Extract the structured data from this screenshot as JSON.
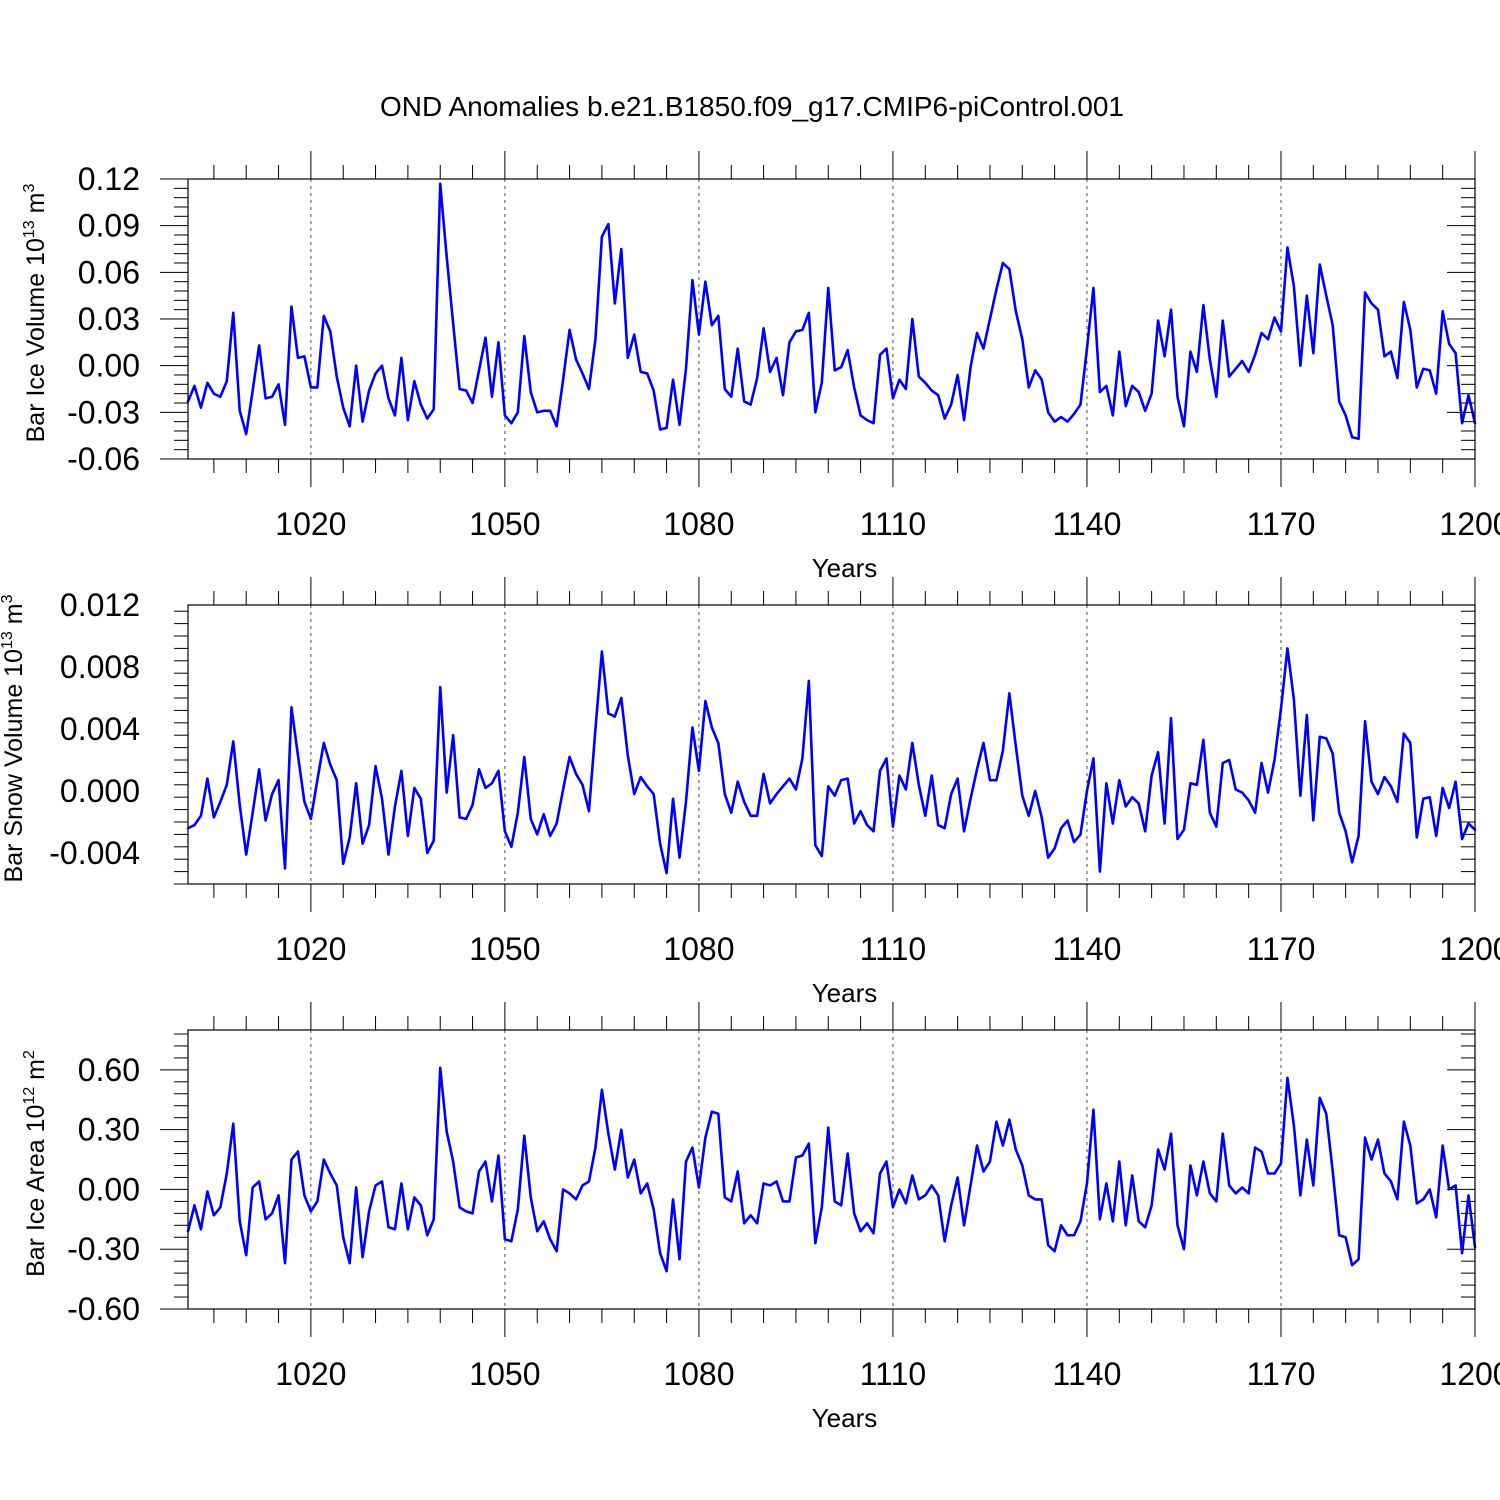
{
  "title": "OND Anomalies b.e21.B1850.f09_g17.CMIP6-piControl.001",
  "colors": {
    "line": "#0000ff",
    "axis": "#000000",
    "background": "#ffffff"
  },
  "chart_data": [
    {
      "type": "line",
      "ylabel": "Bar Ice Volume 10",
      "ylabel_exp": "13",
      "ylabel_unit": " m",
      "ylabel_unit_exp": "3",
      "xlabel": "Years",
      "xlim": [
        1001,
        1200
      ],
      "ylim": [
        -0.06,
        0.12
      ],
      "xticks": [
        1020,
        1050,
        1080,
        1110,
        1140,
        1170,
        1200
      ],
      "xtick_labels": [
        "1020",
        "1050",
        "1080",
        "1110",
        "1140",
        "1170",
        "1200"
      ],
      "yticks": [
        -0.06,
        -0.03,
        0.0,
        0.03,
        0.06,
        0.09,
        0.12
      ],
      "ytick_labels": [
        "-0.06",
        "-0.03",
        "0.00",
        "0.03",
        "0.06",
        "0.09",
        "0.12"
      ],
      "grid": "vertical dashed at major x ticks",
      "series": [
        {
          "name": "Bar Ice Volume",
          "x_start": 1001,
          "values": [
            -0.023,
            -0.013,
            -0.027,
            -0.011,
            -0.018,
            -0.02,
            -0.01,
            0.034,
            -0.029,
            -0.044,
            -0.016,
            0.013,
            -0.021,
            -0.02,
            -0.012,
            -0.038,
            0.038,
            0.005,
            0.006,
            -0.014,
            -0.014,
            0.032,
            0.022,
            -0.007,
            -0.027,
            -0.039,
            0.0,
            -0.036,
            -0.016,
            -0.005,
            0.0,
            -0.021,
            -0.032,
            0.005,
            -0.035,
            -0.01,
            -0.025,
            -0.034,
            -0.028,
            0.117,
            0.07,
            0.027,
            -0.015,
            -0.016,
            -0.024,
            -0.003,
            0.018,
            -0.02,
            0.015,
            -0.032,
            -0.037,
            -0.03,
            0.019,
            -0.017,
            -0.03,
            -0.029,
            -0.029,
            -0.039,
            -0.009,
            0.023,
            0.004,
            -0.005,
            -0.015,
            0.017,
            0.083,
            0.091,
            0.04,
            0.075,
            0.005,
            0.02,
            -0.004,
            -0.005,
            -0.016,
            -0.041,
            -0.04,
            -0.009,
            -0.038,
            -0.002,
            0.055,
            0.02,
            0.054,
            0.026,
            0.032,
            -0.015,
            -0.02,
            0.011,
            -0.023,
            -0.025,
            -0.008,
            0.024,
            -0.004,
            0.005,
            -0.019,
            0.015,
            0.022,
            0.023,
            0.034,
            -0.03,
            -0.011,
            0.05,
            -0.003,
            -0.001,
            0.01,
            -0.014,
            -0.032,
            -0.035,
            -0.037,
            0.007,
            0.011,
            -0.021,
            -0.009,
            -0.015,
            0.03,
            -0.007,
            -0.011,
            -0.016,
            -0.019,
            -0.034,
            -0.025,
            -0.006,
            -0.035,
            -0.001,
            0.021,
            0.011,
            0.03,
            0.049,
            0.066,
            0.062,
            0.035,
            0.017,
            -0.014,
            -0.003,
            -0.009,
            -0.03,
            -0.036,
            -0.033,
            -0.036,
            -0.031,
            -0.025,
            0.011,
            0.05,
            -0.017,
            -0.013,
            -0.032,
            0.009,
            -0.026,
            -0.013,
            -0.017,
            -0.029,
            -0.018,
            0.029,
            0.006,
            0.036,
            -0.02,
            -0.039,
            0.009,
            -0.004,
            0.039,
            0.004,
            -0.02,
            0.029,
            -0.007,
            -0.002,
            0.003,
            -0.004,
            0.007,
            0.021,
            0.017,
            0.031,
            0.022,
            0.076,
            0.051,
            0.0,
            0.045,
            0.008,
            0.065,
            0.045,
            0.026,
            -0.023,
            -0.032,
            -0.046,
            -0.047,
            0.047,
            0.04,
            0.036,
            0.006,
            0.009,
            -0.008,
            0.041,
            0.023,
            -0.014,
            -0.002,
            -0.003,
            -0.018,
            0.035,
            0.014,
            0.008,
            -0.037,
            -0.019,
            -0.037
          ]
        }
      ]
    },
    {
      "type": "line",
      "ylabel": "Bar Snow Volume 10",
      "ylabel_exp": "13",
      "ylabel_unit": " m",
      "ylabel_unit_exp": "3",
      "xlabel": "Years",
      "xlim": [
        1001,
        1200
      ],
      "ylim": [
        -0.006,
        0.012
      ],
      "xticks": [
        1020,
        1050,
        1080,
        1110,
        1140,
        1170,
        1200
      ],
      "xtick_labels": [
        "1020",
        "1050",
        "1080",
        "1110",
        "1140",
        "1170",
        "1200"
      ],
      "yticks": [
        -0.004,
        0.0,
        0.004,
        0.008,
        0.012
      ],
      "ytick_labels": [
        "-0.004",
        "0.000",
        "0.004",
        "0.008",
        "0.012"
      ],
      "grid": "vertical dashed at major x ticks",
      "series": [
        {
          "name": "Bar Snow Volume",
          "x_start": 1001,
          "values": [
            -0.0024,
            -0.0022,
            -0.0016,
            0.0008,
            -0.0017,
            -0.0007,
            0.0004,
            0.0032,
            -0.0009,
            -0.0041,
            -0.0014,
            0.0014,
            -0.0019,
            -0.0002,
            0.0007,
            -0.005,
            0.0054,
            0.0023,
            -0.0007,
            -0.0018,
            0.0007,
            0.0031,
            0.0017,
            0.0007,
            -0.0047,
            -0.003,
            0.0005,
            -0.0034,
            -0.0022,
            0.0016,
            -0.0005,
            -0.0041,
            -0.001,
            0.0013,
            -0.0029,
            0.0002,
            -0.0005,
            -0.004,
            -0.0032,
            0.0067,
            -0.0001,
            0.0036,
            -0.0017,
            -0.0018,
            -0.0009,
            0.0014,
            0.0002,
            0.0005,
            0.0013,
            -0.0026,
            -0.0036,
            -0.0014,
            0.0022,
            -0.0018,
            -0.0028,
            -0.0015,
            -0.0029,
            -0.0021,
            0.0001,
            0.0022,
            0.0011,
            0.0004,
            -0.0013,
            0.004,
            0.009,
            0.005,
            0.0048,
            0.006,
            0.0023,
            -0.0002,
            0.0009,
            0.0003,
            -0.0002,
            -0.0034,
            -0.0053,
            -0.0005,
            -0.0043,
            -0.0007,
            0.0041,
            0.0013,
            0.0058,
            0.0041,
            0.0031,
            -0.0002,
            -0.0014,
            0.0006,
            -0.0007,
            -0.0016,
            -0.0016,
            0.0011,
            -0.0008,
            -0.0002,
            0.0003,
            0.0008,
            0.0001,
            0.0021,
            0.0071,
            -0.0035,
            -0.0042,
            0.0003,
            -0.0003,
            0.0007,
            0.0008,
            -0.0021,
            -0.0013,
            -0.0022,
            -0.0026,
            0.0013,
            0.0021,
            -0.0023,
            0.001,
            0.0001,
            0.0031,
            0.0004,
            -0.0016,
            0.001,
            -0.0022,
            -0.0024,
            -0.0002,
            0.0008,
            -0.0026,
            -0.0005,
            0.0014,
            0.0031,
            0.0007,
            0.0007,
            0.0026,
            0.0063,
            0.0029,
            -0.0003,
            -0.0016,
            0.0,
            -0.0017,
            -0.0043,
            -0.0037,
            -0.0024,
            -0.0019,
            -0.0033,
            -0.0028,
            0.0,
            0.0021,
            -0.0052,
            0.0005,
            -0.0021,
            0.0007,
            -0.001,
            -0.0004,
            -0.0008,
            -0.0026,
            0.001,
            0.0025,
            -0.0021,
            0.0047,
            -0.0031,
            -0.0025,
            0.0005,
            0.0004,
            0.0033,
            -0.0014,
            -0.0023,
            0.0018,
            0.002,
            0.0001,
            -0.0001,
            -0.0006,
            -0.0014,
            0.0018,
            -0.0001,
            0.002,
            0.0053,
            0.0092,
            0.0059,
            -0.0003,
            0.0049,
            -0.0019,
            0.0035,
            0.0034,
            0.0024,
            -0.0014,
            -0.0026,
            -0.0046,
            -0.0029,
            0.0045,
            0.0006,
            -0.0002,
            0.0009,
            0.0003,
            -0.0007,
            0.0037,
            0.0031,
            -0.003,
            -0.0005,
            -0.0004,
            -0.0029,
            0.0002,
            -0.0011,
            0.0006,
            -0.0031,
            -0.0021,
            -0.0025
          ]
        }
      ]
    },
    {
      "type": "line",
      "ylabel": "Bar Ice Area 10",
      "ylabel_exp": "12",
      "ylabel_unit": " m",
      "ylabel_unit_exp": "2",
      "xlabel": "Years",
      "xlim": [
        1001,
        1200
      ],
      "ylim": [
        -0.6,
        0.8
      ],
      "xticks": [
        1020,
        1050,
        1080,
        1110,
        1140,
        1170,
        1200
      ],
      "xtick_labels": [
        "1020",
        "1050",
        "1080",
        "1110",
        "1140",
        "1170",
        "1200"
      ],
      "yticks": [
        -0.6,
        -0.3,
        0.0,
        0.3,
        0.6
      ],
      "ytick_labels": [
        "-0.60",
        "-0.30",
        "0.00",
        "0.30",
        "0.60"
      ],
      "grid": "vertical dashed at major x ticks",
      "series": [
        {
          "name": "Bar Ice Area",
          "x_start": 1001,
          "values": [
            -0.21,
            -0.08,
            -0.2,
            -0.01,
            -0.13,
            -0.09,
            0.08,
            0.33,
            -0.16,
            -0.33,
            0.01,
            0.04,
            -0.15,
            -0.12,
            -0.03,
            -0.37,
            0.15,
            0.19,
            -0.03,
            -0.11,
            -0.06,
            0.15,
            0.08,
            0.02,
            -0.24,
            -0.37,
            0.01,
            -0.34,
            -0.11,
            0.02,
            0.04,
            -0.19,
            -0.2,
            0.03,
            -0.2,
            -0.04,
            -0.08,
            -0.23,
            -0.15,
            0.61,
            0.29,
            0.14,
            -0.09,
            -0.11,
            -0.12,
            0.09,
            0.14,
            -0.06,
            0.17,
            -0.25,
            -0.26,
            -0.1,
            0.27,
            -0.04,
            -0.21,
            -0.16,
            -0.25,
            -0.31,
            0.0,
            -0.02,
            -0.05,
            0.02,
            0.04,
            0.21,
            0.5,
            0.28,
            0.1,
            0.3,
            0.06,
            0.15,
            -0.02,
            0.03,
            -0.1,
            -0.32,
            -0.41,
            -0.05,
            -0.35,
            0.14,
            0.21,
            0.01,
            0.26,
            0.39,
            0.38,
            -0.04,
            -0.06,
            0.09,
            -0.17,
            -0.13,
            -0.17,
            0.03,
            0.02,
            0.04,
            -0.06,
            -0.06,
            0.16,
            0.17,
            0.23,
            -0.27,
            -0.09,
            0.31,
            -0.06,
            -0.08,
            0.18,
            -0.12,
            -0.21,
            -0.17,
            -0.22,
            0.08,
            0.14,
            -0.09,
            0.0,
            -0.07,
            0.07,
            -0.05,
            -0.03,
            0.02,
            -0.03,
            -0.26,
            -0.08,
            0.06,
            -0.18,
            0.02,
            0.22,
            0.09,
            0.14,
            0.34,
            0.22,
            0.35,
            0.2,
            0.12,
            -0.03,
            -0.05,
            -0.05,
            -0.28,
            -0.31,
            -0.18,
            -0.23,
            -0.23,
            -0.16,
            0.03,
            0.4,
            -0.15,
            0.03,
            -0.16,
            0.14,
            -0.18,
            0.07,
            -0.16,
            -0.19,
            -0.08,
            0.2,
            0.1,
            0.28,
            -0.18,
            -0.3,
            0.12,
            -0.03,
            0.14,
            -0.02,
            -0.06,
            0.28,
            0.02,
            -0.02,
            0.01,
            -0.02,
            0.21,
            0.19,
            0.08,
            0.08,
            0.13,
            0.56,
            0.32,
            -0.03,
            0.25,
            0.02,
            0.46,
            0.38,
            0.09,
            -0.23,
            -0.24,
            -0.38,
            -0.35,
            0.26,
            0.15,
            0.25,
            0.08,
            0.04,
            -0.05,
            0.34,
            0.22,
            -0.07,
            -0.05,
            0.0,
            -0.14,
            0.22,
            0.0,
            0.02,
            -0.32,
            -0.03,
            -0.29
          ]
        }
      ]
    }
  ]
}
